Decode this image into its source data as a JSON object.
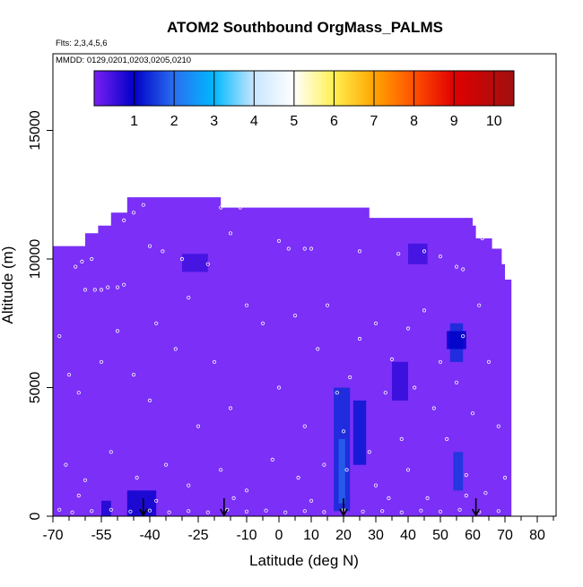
{
  "chart_data": {
    "type": "heatmap",
    "title": "ATOM2 Southbound OrgMass_PALMS",
    "flights_label": "Flts: 2,3,4,5,6",
    "dates_label": "MMDD: 0129,0201,0203,0205,0210",
    "xlabel": "Latitude (deg N)",
    "ylabel": "Altitude (m)",
    "xlim": [
      -70,
      87
    ],
    "ylim": [
      0,
      17500
    ],
    "x_ticks": [
      -70,
      -55,
      -40,
      -25,
      -10,
      0,
      10,
      20,
      30,
      40,
      50,
      60,
      70,
      80
    ],
    "x_tick_labels": [
      "-70",
      "-55",
      "-40",
      "-25",
      "-10",
      "0",
      "10",
      "20",
      "30",
      "40",
      "50",
      "60",
      "70",
      "80"
    ],
    "x_minor_ticks": [
      -65,
      -60,
      -50,
      -45,
      -35,
      -30,
      -20,
      -15,
      -5,
      5,
      15,
      25,
      35,
      45,
      55,
      65,
      75,
      85
    ],
    "y_ticks": [
      0,
      5000,
      10000,
      15000
    ],
    "y_tick_labels": [
      "0",
      "5000",
      "10000",
      "15000"
    ],
    "colorbar": {
      "range": [
        0,
        10.5
      ],
      "ticks": [
        1,
        2,
        3,
        4,
        5,
        6,
        7,
        8,
        9,
        10
      ],
      "tick_labels": [
        "1",
        "2",
        "3",
        "4",
        "5",
        "6",
        "7",
        "8",
        "9",
        "10"
      ],
      "colors": [
        "#7b1ff2",
        "#0000c8",
        "#2a6ff0",
        "#00b8ff",
        "#ffffff",
        "#fff050",
        "#ffa500",
        "#ff5000",
        "#e00000",
        "#a01010"
      ]
    },
    "background_color": "#7b2ff7",
    "coverage_profile": [
      {
        "lat": -70,
        "top": 10500
      },
      {
        "lat": -61,
        "top": 10500
      },
      {
        "lat": -60,
        "top": 11000
      },
      {
        "lat": -56,
        "top": 11300
      },
      {
        "lat": -52,
        "top": 11800
      },
      {
        "lat": -47,
        "top": 12400
      },
      {
        "lat": -34,
        "top": 12400
      },
      {
        "lat": -18,
        "top": 12000
      },
      {
        "lat": 28,
        "top": 11600
      },
      {
        "lat": 60,
        "top": 11300
      },
      {
        "lat": 61,
        "top": 10800
      },
      {
        "lat": 66,
        "top": 10400
      },
      {
        "lat": 69,
        "top": 9800
      },
      {
        "lat": 70,
        "top": 9200
      },
      {
        "lat": 72,
        "top": 9200
      }
    ],
    "high_value_regions": [
      {
        "lat_min": 17,
        "lat_max": 22,
        "alt_min": 200,
        "alt_max": 5000,
        "value": 1.4
      },
      {
        "lat_min": 18.5,
        "lat_max": 20.5,
        "alt_min": 500,
        "alt_max": 3000,
        "value": 1.9
      },
      {
        "lat_min": 23,
        "lat_max": 27,
        "alt_min": 2000,
        "alt_max": 4500,
        "value": 1.2
      },
      {
        "lat_min": 53,
        "lat_max": 57,
        "alt_min": 6000,
        "alt_max": 7500,
        "value": 1.4
      },
      {
        "lat_min": 54,
        "lat_max": 57,
        "alt_min": 1000,
        "alt_max": 2500,
        "value": 1.5
      },
      {
        "lat_min": 52,
        "lat_max": 58,
        "alt_min": 6500,
        "alt_max": 7200,
        "value": 1.0
      },
      {
        "lat_min": -47,
        "lat_max": -38,
        "alt_min": 0,
        "alt_max": 1000,
        "value": 0.9
      },
      {
        "lat_min": -55,
        "lat_max": -52,
        "alt_min": 0,
        "alt_max": 600,
        "value": 0.8
      },
      {
        "lat_min": 35,
        "lat_max": 40,
        "alt_min": 4500,
        "alt_max": 6000,
        "value": 0.6
      },
      {
        "lat_min": -30,
        "lat_max": -22,
        "alt_min": 9500,
        "alt_max": 10200,
        "value": 0.5
      },
      {
        "lat_min": 40,
        "lat_max": 46,
        "alt_min": 9800,
        "alt_max": 10600,
        "value": 0.5
      }
    ],
    "sample_points": [
      {
        "lat": -60,
        "alt": 8800
      },
      {
        "lat": -57,
        "alt": 8800
      },
      {
        "lat": -55,
        "alt": 8800
      },
      {
        "lat": -53,
        "alt": 8900
      },
      {
        "lat": -50,
        "alt": 8900
      },
      {
        "lat": -48,
        "alt": 9000
      },
      {
        "lat": -63,
        "alt": 9700
      },
      {
        "lat": -61,
        "alt": 9900
      },
      {
        "lat": -58,
        "alt": 10000
      },
      {
        "lat": -48,
        "alt": 11500
      },
      {
        "lat": -45,
        "alt": 11800
      },
      {
        "lat": -42,
        "alt": 12100
      },
      {
        "lat": -40,
        "alt": 10500
      },
      {
        "lat": -36,
        "alt": 10300
      },
      {
        "lat": -30,
        "alt": 10000
      },
      {
        "lat": -22,
        "alt": 9800
      },
      {
        "lat": -18,
        "alt": 12000
      },
      {
        "lat": -12,
        "alt": 12000
      },
      {
        "lat": -15,
        "alt": 11000
      },
      {
        "lat": 0,
        "alt": 10700
      },
      {
        "lat": 3,
        "alt": 10400
      },
      {
        "lat": 8,
        "alt": 10400
      },
      {
        "lat": 10,
        "alt": 10400
      },
      {
        "lat": 25,
        "alt": 10300
      },
      {
        "lat": 37,
        "alt": 10200
      },
      {
        "lat": 45,
        "alt": 10300
      },
      {
        "lat": 50,
        "alt": 10100
      },
      {
        "lat": 55,
        "alt": 9700
      },
      {
        "lat": 57,
        "alt": 9600
      },
      {
        "lat": 63,
        "alt": 10800
      },
      {
        "lat": 66,
        "alt": 11300
      },
      {
        "lat": -68,
        "alt": 7000
      },
      {
        "lat": -65,
        "alt": 5500
      },
      {
        "lat": -62,
        "alt": 4800
      },
      {
        "lat": -55,
        "alt": 6000
      },
      {
        "lat": -50,
        "alt": 7200
      },
      {
        "lat": -45,
        "alt": 5500
      },
      {
        "lat": -40,
        "alt": 4500
      },
      {
        "lat": -38,
        "alt": 7500
      },
      {
        "lat": -32,
        "alt": 6500
      },
      {
        "lat": -28,
        "alt": 8500
      },
      {
        "lat": -25,
        "alt": 3500
      },
      {
        "lat": -20,
        "alt": 6000
      },
      {
        "lat": -15,
        "alt": 4200
      },
      {
        "lat": -10,
        "alt": 8200
      },
      {
        "lat": -5,
        "alt": 7500
      },
      {
        "lat": 0,
        "alt": 5000
      },
      {
        "lat": 5,
        "alt": 7800
      },
      {
        "lat": 8,
        "alt": 3500
      },
      {
        "lat": 12,
        "alt": 6500
      },
      {
        "lat": 15,
        "alt": 8200
      },
      {
        "lat": 18,
        "alt": 4800
      },
      {
        "lat": 20,
        "alt": 3300
      },
      {
        "lat": 21,
        "alt": 1800
      },
      {
        "lat": 22,
        "alt": 5400
      },
      {
        "lat": 25,
        "alt": 6900
      },
      {
        "lat": 28,
        "alt": 2500
      },
      {
        "lat": 30,
        "alt": 7500
      },
      {
        "lat": 33,
        "alt": 4800
      },
      {
        "lat": 35,
        "alt": 6100
      },
      {
        "lat": 38,
        "alt": 3000
      },
      {
        "lat": 40,
        "alt": 7300
      },
      {
        "lat": 42,
        "alt": 5000
      },
      {
        "lat": 45,
        "alt": 8000
      },
      {
        "lat": 48,
        "alt": 4200
      },
      {
        "lat": 50,
        "alt": 6000
      },
      {
        "lat": 52,
        "alt": 3000
      },
      {
        "lat": 55,
        "alt": 5200
      },
      {
        "lat": 57,
        "alt": 7000
      },
      {
        "lat": 60,
        "alt": 4000
      },
      {
        "lat": 62,
        "alt": 8200
      },
      {
        "lat": 65,
        "alt": 6000
      },
      {
        "lat": 68,
        "alt": 3500
      },
      {
        "lat": 70,
        "alt": 1500
      },
      {
        "lat": -66,
        "alt": 2000
      },
      {
        "lat": -60,
        "alt": 1400
      },
      {
        "lat": -52,
        "alt": 2500
      },
      {
        "lat": -44,
        "alt": 1500
      },
      {
        "lat": -35,
        "alt": 2000
      },
      {
        "lat": -28,
        "alt": 1200
      },
      {
        "lat": -18,
        "alt": 1800
      },
      {
        "lat": -10,
        "alt": 1000
      },
      {
        "lat": -2,
        "alt": 2200
      },
      {
        "lat": 6,
        "alt": 1500
      },
      {
        "lat": 14,
        "alt": 2000
      },
      {
        "lat": 30,
        "alt": 1200
      },
      {
        "lat": 40,
        "alt": 1800
      },
      {
        "lat": 46,
        "alt": 700
      },
      {
        "lat": 58,
        "alt": 1600
      },
      {
        "lat": 64,
        "alt": 900
      },
      {
        "lat": -68,
        "alt": 250
      },
      {
        "lat": -64,
        "alt": 150
      },
      {
        "lat": -58,
        "alt": 200
      },
      {
        "lat": -52,
        "alt": 250
      },
      {
        "lat": -46,
        "alt": 180
      },
      {
        "lat": -40,
        "alt": 220
      },
      {
        "lat": -34,
        "alt": 150
      },
      {
        "lat": -28,
        "alt": 200
      },
      {
        "lat": -22,
        "alt": 150
      },
      {
        "lat": -16,
        "alt": 250
      },
      {
        "lat": -10,
        "alt": 180
      },
      {
        "lat": -4,
        "alt": 220
      },
      {
        "lat": 2,
        "alt": 150
      },
      {
        "lat": 8,
        "alt": 200
      },
      {
        "lat": 14,
        "alt": 160
      },
      {
        "lat": 20,
        "alt": 250
      },
      {
        "lat": 26,
        "alt": 180
      },
      {
        "lat": 32,
        "alt": 200
      },
      {
        "lat": 38,
        "alt": 150
      },
      {
        "lat": 44,
        "alt": 220
      },
      {
        "lat": 50,
        "alt": 180
      },
      {
        "lat": 56,
        "alt": 250
      },
      {
        "lat": 62,
        "alt": 160
      },
      {
        "lat": 68,
        "alt": 200
      },
      {
        "lat": -62,
        "alt": 800
      },
      {
        "lat": -38,
        "alt": 600
      },
      {
        "lat": -14,
        "alt": 700
      },
      {
        "lat": 10,
        "alt": 600
      },
      {
        "lat": 34,
        "alt": 700
      },
      {
        "lat": 58,
        "alt": 800
      }
    ],
    "markers": [
      {
        "lat": -42
      },
      {
        "lat": -17
      },
      {
        "lat": 20
      },
      {
        "lat": 61
      }
    ]
  }
}
